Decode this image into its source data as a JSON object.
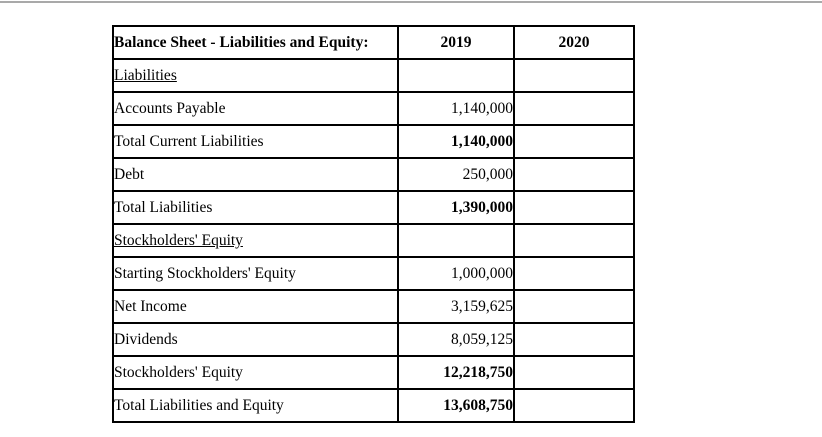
{
  "page": {
    "background": "#ffffff",
    "top_rule_color": "#a9a9a9"
  },
  "table": {
    "border_color": "#000000",
    "header": {
      "title": "Balance Sheet - Liabilities and Equity:",
      "years": [
        "2019",
        "2020"
      ]
    },
    "rows": [
      {
        "label": "Liabilities",
        "section": true,
        "bold": false,
        "v2019": "",
        "v2020": ""
      },
      {
        "label": "Accounts Payable",
        "section": false,
        "bold": false,
        "v2019": "1,140,000",
        "v2020": ""
      },
      {
        "label": "Total Current Liabilities",
        "section": false,
        "bold": true,
        "v2019": "1,140,000",
        "v2020": ""
      },
      {
        "label": "Debt",
        "section": false,
        "bold": false,
        "v2019": "250,000",
        "v2020": ""
      },
      {
        "label": "Total Liabilities",
        "section": false,
        "bold": true,
        "v2019": "1,390,000",
        "v2020": ""
      },
      {
        "label": "Stockholders' Equity",
        "section": true,
        "bold": false,
        "v2019": "",
        "v2020": ""
      },
      {
        "label": "Starting Stockholders' Equity",
        "section": false,
        "bold": false,
        "v2019": "1,000,000",
        "v2020": ""
      },
      {
        "label": "Net Income",
        "section": false,
        "bold": false,
        "v2019": "3,159,625",
        "v2020": ""
      },
      {
        "label": "Dividends",
        "section": false,
        "bold": false,
        "v2019": "8,059,125",
        "v2020": ""
      },
      {
        "label": "Stockholders' Equity",
        "section": false,
        "bold": true,
        "v2019": "12,218,750",
        "v2020": ""
      },
      {
        "label": "Total Liabilities and Equity",
        "section": false,
        "bold": true,
        "v2019": "13,608,750",
        "v2020": ""
      }
    ]
  }
}
